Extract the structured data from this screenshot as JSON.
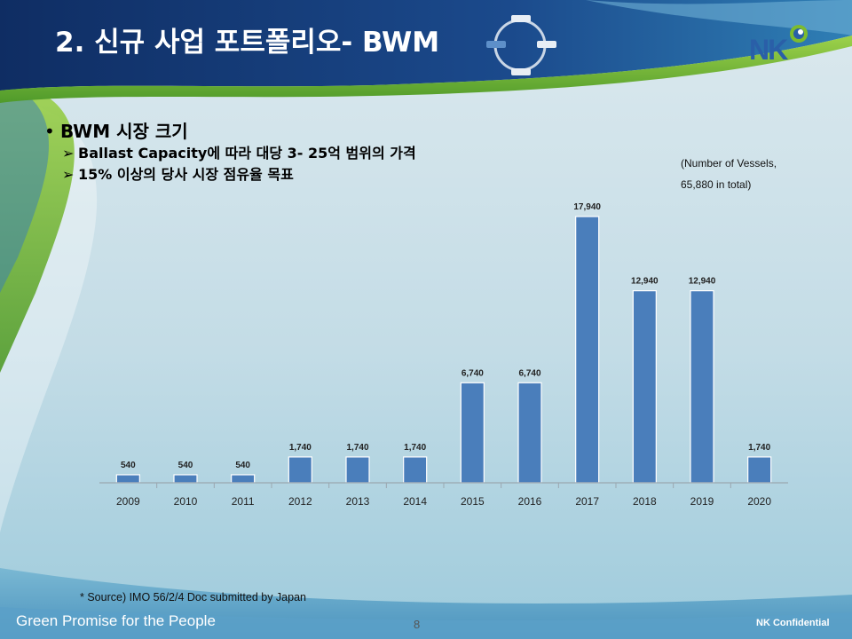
{
  "slide": {
    "title": "2. 신규 사업 포트폴리오- BWM",
    "logo_text": "NK",
    "bullet": "BWM 시장 크기",
    "sub_bullets": [
      "Ballast Capacity에 따라 대당 3- 25억 범위의 가격",
      "15% 이상의 당사 시장 점유율 목표"
    ],
    "note_line1": "(Number of Vessels,",
    "note_line2": "65,880 in total)",
    "source": "* Source) IMO 56/2/4 Doc submitted by Japan",
    "footer_left": "Green Promise for the People",
    "page_number": "8",
    "footer_right": "NK Confidential"
  },
  "colors": {
    "bar": "#4a7ebb",
    "title_band": "#1a3d7a",
    "green_accent": "#7dbb2e"
  },
  "chart_data": {
    "type": "bar",
    "categories": [
      "2009",
      "2010",
      "2011",
      "2012",
      "2013",
      "2014",
      "2015",
      "2016",
      "2017",
      "2018",
      "2019",
      "2020"
    ],
    "values": [
      540,
      540,
      540,
      1740,
      1740,
      1740,
      6740,
      6740,
      17940,
      12940,
      12940,
      1740
    ],
    "data_labels": [
      "540",
      "540",
      "540",
      "1,740",
      "1,740",
      "1,740",
      "6,740",
      "6,740",
      "17,940",
      "12,940",
      "12,940",
      "1,740"
    ],
    "title": "",
    "xlabel": "",
    "ylabel": "",
    "ylim": [
      0,
      17940
    ],
    "grid": false,
    "legend": "none"
  }
}
